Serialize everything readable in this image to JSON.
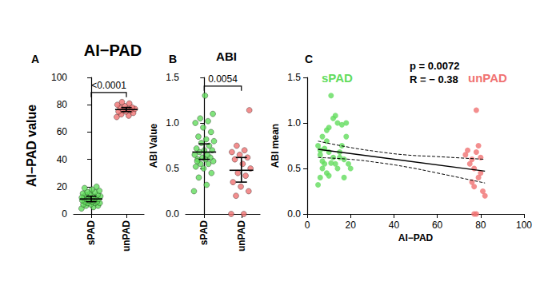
{
  "chart_data": [
    {
      "panel": "A",
      "type": "dot",
      "title": "AI−PAD",
      "ylabel": "AI−PAD value",
      "categories": [
        "sPAD",
        "unPAD"
      ],
      "values": [
        [
          4,
          5,
          6,
          6,
          7,
          7,
          8,
          8,
          8,
          9,
          9,
          9,
          10,
          10,
          10,
          11,
          11,
          11,
          12,
          12,
          12,
          13,
          13,
          14,
          14,
          15,
          15,
          16,
          16,
          17,
          18,
          19,
          20,
          10,
          12
        ],
        [
          71,
          72,
          73,
          74,
          75,
          75,
          76,
          76,
          77,
          77,
          78,
          78,
          79,
          80,
          81,
          82
        ]
      ],
      "colors": [
        "#62dc5c",
        "#f07272"
      ],
      "marker": "circle",
      "means": [
        11,
        76.5
      ],
      "ci": [
        [
          9,
          13
        ],
        [
          75,
          78
        ]
      ],
      "annotation": "<0.0001",
      "ylim": [
        0,
        100
      ],
      "yticks": [
        0,
        20,
        40,
        60,
        80,
        100
      ],
      "grid": false
    },
    {
      "panel": "B",
      "type": "dot",
      "title": "ABI",
      "ylabel": "ABI Value",
      "categories": [
        "sPAD",
        "unPAD"
      ],
      "values": [
        [
          0.25,
          0.32,
          0.4,
          0.45,
          0.5,
          0.52,
          0.55,
          0.55,
          0.58,
          0.6,
          0.6,
          0.62,
          0.62,
          0.65,
          0.65,
          0.68,
          0.7,
          0.7,
          0.72,
          0.75,
          0.78,
          0.8,
          0.82,
          0.85,
          0.9,
          0.95,
          1.0,
          1.02,
          1.05,
          1.1,
          1.3,
          0.58
        ],
        [
          0.0,
          0.0,
          0.2,
          0.25,
          0.3,
          0.35,
          0.42,
          0.45,
          0.5,
          0.55,
          0.6,
          0.62,
          0.65,
          0.68,
          0.7,
          0.75,
          1.14
        ]
      ],
      "colors": [
        "#62dc5c",
        "#f07272"
      ],
      "marker": "circle",
      "means": [
        0.68,
        0.48
      ],
      "ci": [
        [
          0.6,
          0.77
        ],
        [
          0.35,
          0.62
        ]
      ],
      "annotation": "0.0054",
      "ylim": [
        0,
        1.5
      ],
      "yticks": [
        {
          "value": 0,
          "label": "0.0"
        },
        {
          "value": 0.5,
          "label": "0.5"
        },
        {
          "value": 1,
          "label": "1.0"
        },
        {
          "value": 1.5,
          "label": "1.5"
        }
      ],
      "grid": false
    },
    {
      "panel": "C",
      "type": "scatter",
      "xlabel": "AI−PAD",
      "ylabel": "ABI mean",
      "series": [
        {
          "name": "sPAD",
          "color": "#62dc5c",
          "marker": "circle",
          "x": [
            5,
            6,
            7,
            7,
            6,
            8,
            5,
            9,
            10,
            8,
            9,
            10,
            11,
            12,
            13,
            14,
            16,
            18,
            18,
            16,
            15,
            13,
            12,
            11,
            14,
            17,
            19,
            20,
            17,
            15,
            10,
            9,
            7,
            6
          ],
          "values": [
            0.32,
            0.4,
            0.5,
            0.58,
            0.65,
            0.72,
            0.75,
            0.8,
            0.68,
            0.55,
            0.45,
            0.42,
            1.3,
            1.05,
            1.08,
            1.0,
            0.98,
            1.0,
            0.85,
            0.75,
            0.62,
            0.55,
            0.62,
            0.56,
            0.5,
            0.6,
            0.55,
            0.5,
            0.4,
            0.68,
            0.95,
            0.92,
            0.85,
            0.7
          ]
        },
        {
          "name": "unPAD",
          "color": "#f07272",
          "marker": "circle",
          "x": [
            73,
            74,
            75,
            76,
            77,
            78,
            79,
            80,
            76,
            77,
            79,
            81,
            82,
            77,
            78,
            78,
            80
          ],
          "values": [
            0.65,
            0.7,
            0.55,
            0.6,
            0.5,
            0.68,
            0.75,
            0.45,
            0.35,
            0.3,
            0.4,
            0.25,
            0.2,
            0.0,
            0.0,
            1.14,
            0.62
          ]
        }
      ],
      "fit": {
        "x": [
          5,
          82
        ],
        "y": [
          0.71,
          0.47
        ],
        "line_style": "solid"
      },
      "band": {
        "x": [
          5,
          20,
          31,
          45,
          60,
          82
        ],
        "upper": [
          0.8,
          0.73,
          0.69,
          0.65,
          0.63,
          0.6
        ],
        "lower": [
          0.62,
          0.6,
          0.57,
          0.52,
          0.45,
          0.34
        ],
        "line_style": "dashed"
      },
      "annotations": [
        "p = 0.0072",
        "R = − 0.38"
      ],
      "xlim": [
        0,
        100
      ],
      "xticks": [
        0,
        20,
        40,
        60,
        80,
        100
      ],
      "ylim": [
        0,
        1.5
      ],
      "yticks": [
        {
          "value": 0,
          "label": "0.0"
        },
        {
          "value": 0.5,
          "label": "0.5"
        },
        {
          "value": 1,
          "label": "1.0"
        },
        {
          "value": 1.5,
          "label": "1.5"
        }
      ],
      "grid": false
    }
  ]
}
